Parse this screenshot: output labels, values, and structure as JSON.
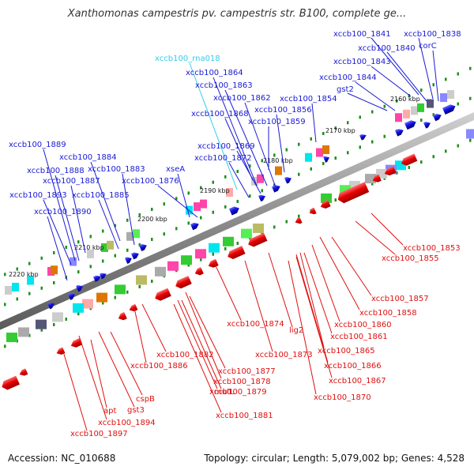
{
  "title": "Xanthomonas campestris pv. campestris str. B100, complete ge...",
  "footer": {
    "accession": "Accession: NC_010688",
    "summary": "Topology: circular; Length: 5,079,002 bp; Genes: 4,528"
  },
  "scale_labels": [
    "2160 kbp",
    "2170 kbp",
    "2180 kbp",
    "2190 kbp",
    "2200 kbp",
    "2210 kbp",
    "2220 kbp"
  ],
  "gene_labels": {
    "top": [
      "xccb100_1841",
      "xccb100_1838",
      "xccb100_1840",
      "corC",
      "xccb100_1843",
      "xccb100_rna018",
      "xccb100_1844",
      "gst2",
      "xccb100_1864",
      "xccb100_1863",
      "xccb100_1862",
      "xccb100_1854",
      "xccb100_1856",
      "xccb100_1868",
      "xccb100_1859",
      "xccb100_1889",
      "xccb100_1869",
      "xccb100_1884",
      "xccb100_1872",
      "xccb100_1888",
      "xccb100_1883",
      "xseA",
      "xccb100_1887",
      "xccb100_1876",
      "xccb100_1893",
      "xccb100_1885",
      "xccb100_1890"
    ],
    "bottom": [
      "xccb100_1853",
      "xccb100_1855",
      "xccb100_1857",
      "xccb100_1858",
      "xccb100_1860",
      "xccb100_1874",
      "lig2",
      "xccb100_1861",
      "xccb100_1865",
      "xccb100_1873",
      "xccb100_1882",
      "xccb100_1886",
      "xccb100_1866",
      "xccb100_1877",
      "xccb100_1878",
      "xccb100_1867",
      "mutL",
      "xccb100_1879",
      "xccb100_1870",
      "cspB",
      "apt",
      "gst3",
      "xccb100_1881",
      "xccb100_1894",
      "xccb100_1897"
    ]
  },
  "colors": {
    "forward_genes": "#1a1ad6",
    "reverse_genes": "#e01010",
    "rna": "#33ccee",
    "backbone": "#8c8c8c"
  }
}
